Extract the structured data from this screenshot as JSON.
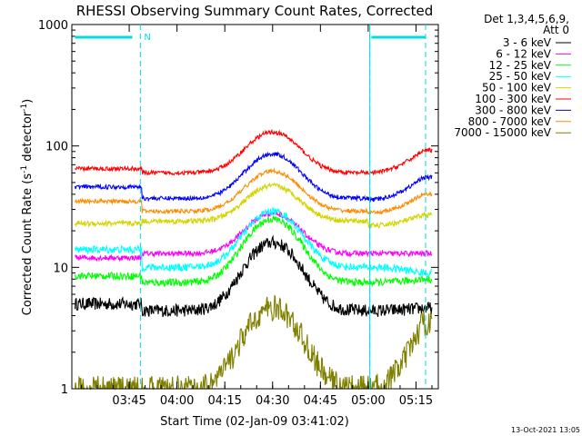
{
  "chart_data": {
    "type": "line",
    "title": "RHESSI Observing Summary Count Rates, Corrected",
    "xlabel": "Start Time (02-Jan-09 03:41:02)",
    "ylabel_main": "Corrected Count Rate (s",
    "ylabel_sup1": "-1",
    "ylabel_mid": " detector",
    "ylabel_sup2": "-1",
    "ylabel_end": ")",
    "y_scale": "log",
    "ylim": [
      1,
      1000
    ],
    "xlim_minutes": [
      -18,
      97
    ],
    "y_ticks": [
      "1",
      "10",
      "100",
      "1000"
    ],
    "x_ticks": [
      {
        "label": "03:45",
        "min": 0
      },
      {
        "label": "04:00",
        "min": 15
      },
      {
        "label": "04:15",
        "min": 30
      },
      {
        "label": "04:30",
        "min": 45
      },
      {
        "label": "04:45",
        "min": 60
      },
      {
        "label": "05:00",
        "min": 75
      },
      {
        "label": "05:15",
        "min": 90
      }
    ],
    "legend_header": [
      "Det 1,3,4,5,6,9,",
      "Att 0"
    ],
    "footer_timestamp": "13-Oct-2021 13:05",
    "night_markers_min": [
      3.5,
      75.5,
      93
    ],
    "night_bar_label": "N",
    "flag_bars": [
      [
        -17,
        1.0
      ],
      [
        76,
        93
      ]
    ],
    "series": [
      {
        "name": "3 - 6 keV",
        "color": "#000000",
        "pre": 5.0,
        "base": 4.4,
        "peak": 16,
        "post": 4.4,
        "noise": 0.12,
        "end": 4.6
      },
      {
        "name": "6 - 12 keV",
        "color": "#ff00ff",
        "pre": 12,
        "base": 13,
        "peak": 28,
        "post": 13,
        "noise": 0.05,
        "end": 13
      },
      {
        "name": "12 - 25 keV",
        "color": "#00ff00",
        "pre": 8.5,
        "base": 7.5,
        "peak": 25,
        "post": 7.5,
        "noise": 0.07,
        "end": 8
      },
      {
        "name": "25 - 50 keV",
        "color": "#00ffff",
        "pre": 14,
        "base": 10,
        "peak": 29,
        "post": 10,
        "noise": 0.07,
        "end": 9
      },
      {
        "name": "50 - 100 keV",
        "color": "#d4d400",
        "pre": 23,
        "base": 24,
        "peak": 47,
        "post": 22,
        "noise": 0.05,
        "end": 27
      },
      {
        "name": "100 - 300 keV",
        "color": "#ff0000",
        "pre": 65,
        "base": 60,
        "peak": 130,
        "post": 60,
        "noise": 0.04,
        "end": 92
      },
      {
        "name": "300 - 800 keV",
        "color": "#0000ff",
        "pre": 46,
        "base": 37,
        "peak": 86,
        "post": 36,
        "noise": 0.04,
        "end": 55
      },
      {
        "name": "800 - 7000 keV",
        "color": "#ff8c00",
        "pre": 35,
        "base": 29,
        "peak": 62,
        "post": 28,
        "noise": 0.04,
        "end": 40
      },
      {
        "name": "7000 - 15000 keV",
        "color": "#808000",
        "pre": 1.0,
        "base": 1.0,
        "peak": 4.6,
        "post": 1.0,
        "noise": 0.25,
        "end": 3.5
      }
    ]
  }
}
